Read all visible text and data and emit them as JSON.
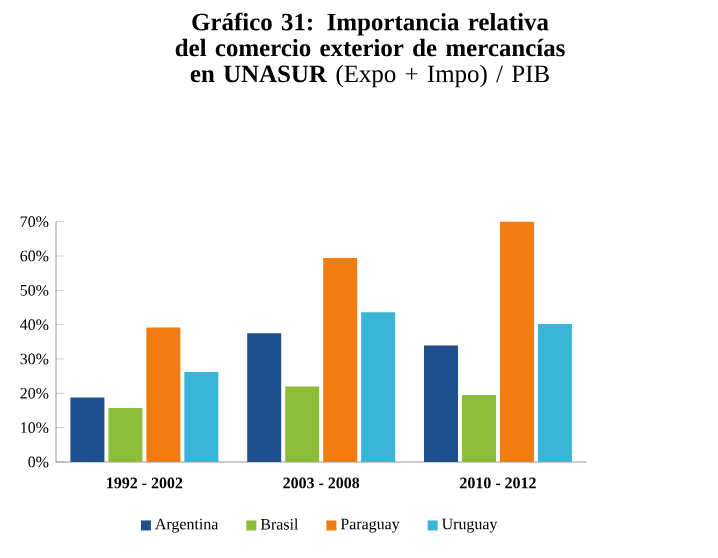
{
  "chart_data": {
    "type": "bar",
    "title": "**Gráfico 31: Importancia relativa del comercio exterior de mercancías en UNASUR** (Expo + Impo) / PIB",
    "categories": [
      "1992 - 2002",
      "2003 - 2008",
      "2010 - 2012"
    ],
    "series": [
      {
        "name": "Argentina",
        "color": "#1f4e8c",
        "values": [
          18.8,
          37.5,
          33.9
        ]
      },
      {
        "name": "Brasil",
        "color": "#8dbb3a",
        "values": [
          15.7,
          22,
          19.5
        ]
      },
      {
        "name": "Paraguay",
        "color": "#f07c12",
        "values": [
          39.2,
          59.4,
          70
        ]
      },
      {
        "name": "Uruguay",
        "color": "#3bb4d8",
        "values": [
          26.2,
          43.6,
          40.2
        ]
      }
    ],
    "ylim": [
      0,
      70
    ],
    "yticks": [
      {
        "value": 0,
        "label": "0%"
      },
      {
        "value": 10,
        "label": "10%"
      },
      {
        "value": 20,
        "label": "20%"
      },
      {
        "value": 30,
        "label": "30%"
      },
      {
        "value": 40,
        "label": "40%"
      },
      {
        "value": 50,
        "label": "50%"
      },
      {
        "value": 60,
        "label": "60%"
      },
      {
        "value": 70,
        "label": "70%"
      }
    ],
    "grid": false,
    "legend": "bottom"
  }
}
